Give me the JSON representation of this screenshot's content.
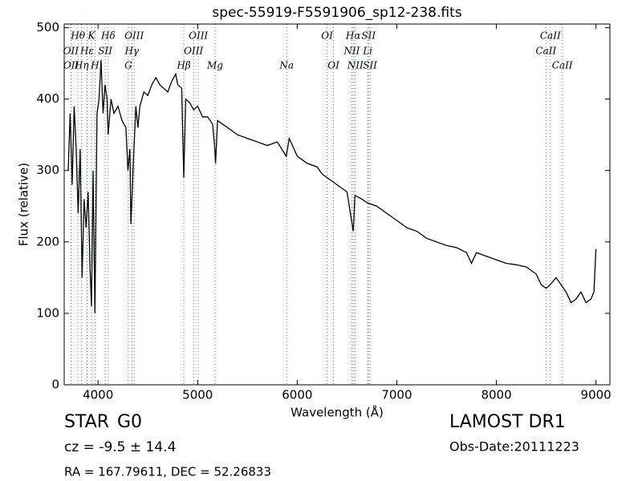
{
  "chart_data": {
    "type": "line",
    "title": "spec-55919-F5591906_sp12-238.fits",
    "x_label": "Wavelength (Å)",
    "y_label": "Flux (relative)",
    "xlim": [
      3660,
      9140
    ],
    "ylim": [
      0,
      505
    ],
    "xticks": [
      4000,
      5000,
      6000,
      7000,
      8000,
      9000
    ],
    "yticks": [
      0,
      100,
      200,
      300,
      400,
      500
    ],
    "color": "#000000",
    "line_color": "#33aa33",
    "x": [
      3700,
      3720,
      3740,
      3760,
      3780,
      3800,
      3820,
      3840,
      3860,
      3880,
      3900,
      3920,
      3934,
      3950,
      3969,
      3990,
      4010,
      4030,
      4050,
      4070,
      4090,
      4102,
      4130,
      4160,
      4200,
      4240,
      4280,
      4300,
      4320,
      4330,
      4340,
      4360,
      4380,
      4400,
      4420,
      4460,
      4500,
      4540,
      4580,
      4620,
      4660,
      4700,
      4740,
      4780,
      4800,
      4840,
      4861,
      4880,
      4920,
      4960,
      5000,
      5050,
      5100,
      5150,
      5170,
      5180,
      5200,
      5250,
      5300,
      5400,
      5500,
      5600,
      5700,
      5800,
      5890,
      5920,
      6000,
      6100,
      6200,
      6250,
      6300,
      6350,
      6400,
      6500,
      6563,
      6580,
      6650,
      6700,
      6800,
      6900,
      7000,
      7100,
      7200,
      7300,
      7400,
      7500,
      7600,
      7700,
      7750,
      7800,
      7900,
      8000,
      8100,
      8200,
      8300,
      8400,
      8450,
      8500,
      8540,
      8600,
      8650,
      8700,
      8750,
      8800,
      8850,
      8900,
      8950,
      8980,
      9000
    ],
    "values": [
      300,
      380,
      280,
      390,
      330,
      240,
      330,
      150,
      260,
      220,
      270,
      160,
      110,
      300,
      100,
      380,
      400,
      455,
      380,
      420,
      400,
      350,
      400,
      380,
      390,
      370,
      360,
      300,
      330,
      225,
      260,
      330,
      390,
      360,
      390,
      410,
      405,
      420,
      430,
      420,
      415,
      410,
      425,
      435,
      420,
      415,
      290,
      400,
      395,
      385,
      390,
      375,
      375,
      365,
      335,
      310,
      370,
      365,
      360,
      350,
      345,
      340,
      335,
      340,
      320,
      345,
      320,
      310,
      305,
      295,
      290,
      285,
      280,
      270,
      215,
      265,
      260,
      255,
      250,
      240,
      230,
      220,
      215,
      205,
      200,
      195,
      192,
      185,
      170,
      185,
      180,
      175,
      170,
      168,
      165,
      155,
      140,
      135,
      140,
      150,
      140,
      130,
      115,
      120,
      130,
      115,
      120,
      130,
      190
    ],
    "lines": [
      {
        "label": "Hθ",
        "wavelength": 3798,
        "row": 0
      },
      {
        "label": "K",
        "wavelength": 3934,
        "row": 0
      },
      {
        "label": "Hδ",
        "wavelength": 4102,
        "row": 0
      },
      {
        "label": "OIII",
        "wavelength": 4363,
        "row": 0
      },
      {
        "label": "OIII",
        "wavelength": 5007,
        "row": 0
      },
      {
        "label": "OI",
        "wavelength": 6300,
        "row": 0
      },
      {
        "label": "Hα",
        "wavelength": 6563,
        "row": 0
      },
      {
        "label": "SII",
        "wavelength": 6716,
        "row": 0
      },
      {
        "label": "CaII",
        "wavelength": 8542,
        "row": 0
      },
      {
        "label": "OII",
        "wavelength": 3727,
        "row": 1
      },
      {
        "label": "Hε",
        "wavelength": 3889,
        "row": 1
      },
      {
        "label": "SII",
        "wavelength": 4072,
        "row": 1
      },
      {
        "label": "Hγ",
        "wavelength": 4340,
        "row": 1
      },
      {
        "label": "OIII",
        "wavelength": 4959,
        "row": 1
      },
      {
        "label": "NII",
        "wavelength": 6548,
        "row": 1
      },
      {
        "label": "Li",
        "wavelength": 6708,
        "row": 1
      },
      {
        "label": "CaII",
        "wavelength": 8498,
        "row": 1
      },
      {
        "label": "OII",
        "wavelength": 3729,
        "row": 2
      },
      {
        "label": "Hη",
        "wavelength": 3835,
        "row": 2
      },
      {
        "label": "H",
        "wavelength": 3969,
        "row": 2
      },
      {
        "label": "G",
        "wavelength": 4304,
        "row": 2
      },
      {
        "label": "Hβ",
        "wavelength": 4861,
        "row": 2
      },
      {
        "label": "Mg",
        "wavelength": 5175,
        "row": 2
      },
      {
        "label": "Na",
        "wavelength": 5894,
        "row": 2
      },
      {
        "label": "OI",
        "wavelength": 6364,
        "row": 2
      },
      {
        "label": "NII",
        "wavelength": 6583,
        "row": 2
      },
      {
        "label": "SII",
        "wavelength": 6731,
        "row": 2
      },
      {
        "label": "CaII",
        "wavelength": 8662,
        "row": 2
      }
    ],
    "object_class": "STAR",
    "subclass": "G0",
    "redshift": "cz = -9.5 ± 14.4",
    "coordinates": "RA = 167.79611, DEC = 52.26833",
    "survey": "LAMOST DR1",
    "obs_date": "Obs-Date:20111223"
  }
}
